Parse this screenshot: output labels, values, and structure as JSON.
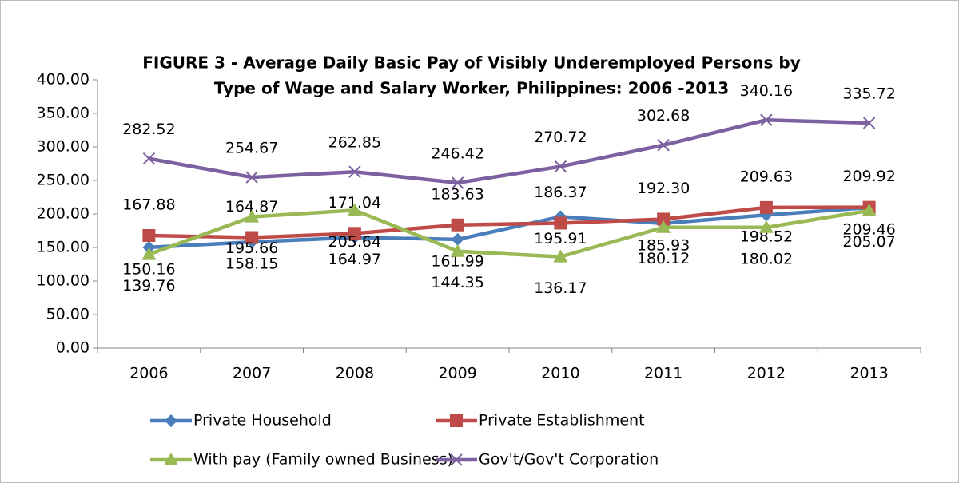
{
  "chart_data": {
    "type": "line",
    "title": [
      "FIGURE 3 - Average Daily Basic Pay of Visibly Underemployed  Persons by",
      "Type of Wage and Salary Worker, Philippines: 2006 -2013"
    ],
    "categories": [
      "2006",
      "2007",
      "2008",
      "2009",
      "2010",
      "2011",
      "2012",
      "2013"
    ],
    "ylim": [
      0,
      400
    ],
    "yticks": [
      {
        "value": 0,
        "label": "0.00"
      },
      {
        "value": 50,
        "label": "50.00"
      },
      {
        "value": 100,
        "label": "100.00"
      },
      {
        "value": 150,
        "label": "150.00"
      },
      {
        "value": 200,
        "label": "200.00"
      },
      {
        "value": 250,
        "label": "250.00"
      },
      {
        "value": 300,
        "label": "300.00"
      },
      {
        "value": 350,
        "label": "350.00"
      },
      {
        "value": 400,
        "label": "400.00"
      }
    ],
    "series": [
      {
        "name": "Private Household",
        "color": "#4a7ebb",
        "marker": "diamond",
        "values": [
          150.16,
          158.15,
          164.97,
          161.99,
          195.91,
          185.93,
          198.52,
          209.46
        ],
        "value_labels": [
          "150.16",
          "158.15",
          "164.97",
          "161.99",
          "195.91",
          "185.93",
          "198.52",
          "209.46"
        ]
      },
      {
        "name": "Private Establishment",
        "color": "#be4b48",
        "marker": "square",
        "values": [
          167.88,
          164.87,
          171.04,
          183.63,
          186.37,
          192.3,
          209.63,
          209.92
        ],
        "value_labels": [
          "167.88",
          "164.87",
          "171.04",
          "183.63",
          "186.37",
          "192.30",
          "209.63",
          "209.92"
        ]
      },
      {
        "name": "With pay (Family owned Business)",
        "color": "#98b954",
        "marker": "triangle",
        "values": [
          139.76,
          195.66,
          205.64,
          144.35,
          136.17,
          180.12,
          180.02,
          205.07
        ],
        "value_labels": [
          "139.76",
          "195.66",
          "205.64",
          "144.35",
          "136.17",
          "180.12",
          "180.02",
          "205.07"
        ]
      },
      {
        "name": "Gov't/Gov't Corporation",
        "color": "#7d60a0",
        "marker": "x",
        "values": [
          282.52,
          254.67,
          262.85,
          246.42,
          270.72,
          302.68,
          340.16,
          335.72
        ],
        "value_labels": [
          "282.52",
          "254.67",
          "262.85",
          "246.42",
          "270.72",
          "302.68",
          "340.16",
          "335.72"
        ]
      }
    ]
  }
}
